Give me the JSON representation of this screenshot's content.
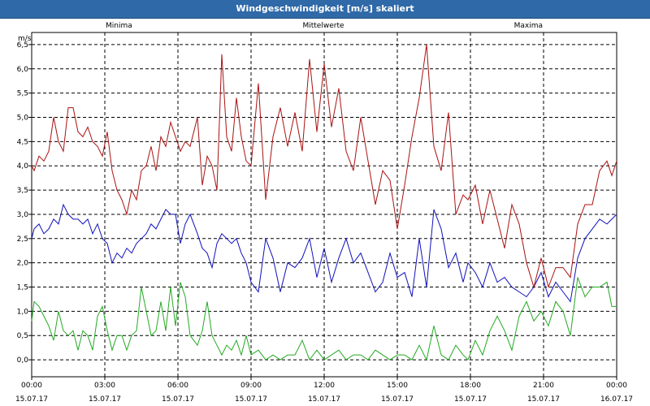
{
  "window": {
    "title": "Windgeschwindigkeit [m/s] skaliert"
  },
  "chart_data": {
    "type": "line",
    "title": "Windgeschwindigkeit [m/s] skaliert",
    "ylabel": "m/s",
    "ylim": [
      -0.35,
      6.75
    ],
    "xlim_hours": [
      0,
      24
    ],
    "grid": true,
    "legend_placement": "top",
    "y_ticks": [
      "0,0",
      "0,5",
      "1,0",
      "1,5",
      "2,0",
      "2,5",
      "3,0",
      "3,5",
      "4,0",
      "4,5",
      "5,0",
      "5,5",
      "6,0",
      "6,5"
    ],
    "x_ticks": [
      {
        "time": "00:00",
        "date": "15.07.17"
      },
      {
        "time": "03:00",
        "date": "15.07.17"
      },
      {
        "time": "06:00",
        "date": "15.07.17"
      },
      {
        "time": "09:00",
        "date": "15.07.17"
      },
      {
        "time": "12:00",
        "date": "15.07.17"
      },
      {
        "time": "15:00",
        "date": "15.07.17"
      },
      {
        "time": "18:00",
        "date": "15.07.17"
      },
      {
        "time": "21:00",
        "date": "15.07.17"
      },
      {
        "time": "00:00",
        "date": "16.07.17"
      }
    ],
    "series": [
      {
        "name": "Minima",
        "color": "#22aa22",
        "x": [
          0,
          0.1,
          0.3,
          0.5,
          0.7,
          0.9,
          1.1,
          1.3,
          1.5,
          1.7,
          1.9,
          2.1,
          2.3,
          2.5,
          2.7,
          2.9,
          3.1,
          3.3,
          3.5,
          3.7,
          3.9,
          4.1,
          4.3,
          4.5,
          4.7,
          4.9,
          5.1,
          5.3,
          5.5,
          5.7,
          5.9,
          6.1,
          6.3,
          6.5,
          6.8,
          7.0,
          7.2,
          7.4,
          7.6,
          7.8,
          8.0,
          8.2,
          8.4,
          8.6,
          8.8,
          9.0,
          9.3,
          9.6,
          9.9,
          10.2,
          10.5,
          10.8,
          11.1,
          11.4,
          11.7,
          12.0,
          12.3,
          12.6,
          12.9,
          13.2,
          13.5,
          13.8,
          14.1,
          14.4,
          14.7,
          15.0,
          15.3,
          15.6,
          15.9,
          16.2,
          16.5,
          16.8,
          17.1,
          17.4,
          17.7,
          17.9,
          18.2,
          18.5,
          18.8,
          19.1,
          19.4,
          19.7,
          20.0,
          20.3,
          20.6,
          20.9,
          21.2,
          21.5,
          21.8,
          22.1,
          22.4,
          22.7,
          23.0,
          23.3,
          23.6,
          23.8,
          24.0
        ],
        "y": [
          0.8,
          1.2,
          1.1,
          0.9,
          0.7,
          0.4,
          1.0,
          0.6,
          0.5,
          0.6,
          0.2,
          0.6,
          0.5,
          0.2,
          0.9,
          1.1,
          0.6,
          0.2,
          0.5,
          0.5,
          0.2,
          0.5,
          0.6,
          1.5,
          1.0,
          0.5,
          0.6,
          1.2,
          0.6,
          1.5,
          0.7,
          1.6,
          1.3,
          0.5,
          0.3,
          0.6,
          1.2,
          0.5,
          0.3,
          0.1,
          0.3,
          0.2,
          0.4,
          0.1,
          0.5,
          0.1,
          0.2,
          0.0,
          0.1,
          0.0,
          0.1,
          0.1,
          0.4,
          0.0,
          0.2,
          0.0,
          0.1,
          0.2,
          0.0,
          0.1,
          0.1,
          0.0,
          0.2,
          0.1,
          0.0,
          0.1,
          0.1,
          0.0,
          0.3,
          0.0,
          0.7,
          0.1,
          0.0,
          0.3,
          0.1,
          0.0,
          0.4,
          0.1,
          0.6,
          0.9,
          0.6,
          0.2,
          0.9,
          1.2,
          0.8,
          1.0,
          0.7,
          1.2,
          1.0,
          0.5,
          1.7,
          1.3,
          1.5,
          1.5,
          1.6,
          1.1,
          1.1
        ]
      },
      {
        "name": "Mittelwerte",
        "color": "#1010bb",
        "x": [
          0,
          0.1,
          0.3,
          0.5,
          0.7,
          0.9,
          1.1,
          1.3,
          1.5,
          1.7,
          1.9,
          2.1,
          2.3,
          2.5,
          2.7,
          2.9,
          3.1,
          3.3,
          3.5,
          3.7,
          3.9,
          4.1,
          4.3,
          4.5,
          4.7,
          4.9,
          5.1,
          5.3,
          5.5,
          5.7,
          5.9,
          6.1,
          6.3,
          6.5,
          6.8,
          7.0,
          7.2,
          7.4,
          7.6,
          7.8,
          8.0,
          8.2,
          8.4,
          8.6,
          8.8,
          9.0,
          9.3,
          9.6,
          9.9,
          10.2,
          10.5,
          10.8,
          11.1,
          11.4,
          11.7,
          12.0,
          12.3,
          12.6,
          12.9,
          13.2,
          13.5,
          13.8,
          14.1,
          14.4,
          14.7,
          15.0,
          15.3,
          15.6,
          15.9,
          16.2,
          16.5,
          16.8,
          17.1,
          17.4,
          17.7,
          17.9,
          18.2,
          18.5,
          18.8,
          19.1,
          19.4,
          19.7,
          20.0,
          20.3,
          20.6,
          20.9,
          21.2,
          21.5,
          21.8,
          22.1,
          22.4,
          22.7,
          23.0,
          23.3,
          23.6,
          23.8,
          24.0
        ],
        "y": [
          2.5,
          2.7,
          2.8,
          2.6,
          2.7,
          2.9,
          2.8,
          3.2,
          3.0,
          2.9,
          2.9,
          2.8,
          2.9,
          2.6,
          2.8,
          2.5,
          2.4,
          2.0,
          2.2,
          2.1,
          2.3,
          2.2,
          2.4,
          2.5,
          2.6,
          2.8,
          2.7,
          2.9,
          3.1,
          3.0,
          3.0,
          2.4,
          2.8,
          3.0,
          2.6,
          2.3,
          2.2,
          1.9,
          2.4,
          2.6,
          2.5,
          2.4,
          2.5,
          2.2,
          2.0,
          1.6,
          1.4,
          2.5,
          2.1,
          1.4,
          2.0,
          1.9,
          2.1,
          2.5,
          1.7,
          2.3,
          1.6,
          2.1,
          2.5,
          2.0,
          2.2,
          1.8,
          1.4,
          1.6,
          2.2,
          1.7,
          1.8,
          1.3,
          2.5,
          1.5,
          3.1,
          2.7,
          1.9,
          2.2,
          1.6,
          2.0,
          1.8,
          1.5,
          2.0,
          1.6,
          1.7,
          1.5,
          1.4,
          1.3,
          1.5,
          1.8,
          1.3,
          1.6,
          1.4,
          1.2,
          2.1,
          2.5,
          2.7,
          2.9,
          2.8,
          2.9,
          3.0
        ]
      },
      {
        "name": "Maxima",
        "color": "#aa1111",
        "x": [
          0,
          0.1,
          0.3,
          0.5,
          0.7,
          0.9,
          1.1,
          1.3,
          1.5,
          1.7,
          1.9,
          2.1,
          2.3,
          2.5,
          2.7,
          2.9,
          3.1,
          3.3,
          3.5,
          3.7,
          3.9,
          4.1,
          4.3,
          4.5,
          4.7,
          4.9,
          5.1,
          5.3,
          5.5,
          5.7,
          5.9,
          6.1,
          6.3,
          6.5,
          6.8,
          7.0,
          7.2,
          7.4,
          7.6,
          7.8,
          8.0,
          8.2,
          8.4,
          8.6,
          8.8,
          9.0,
          9.3,
          9.6,
          9.9,
          10.2,
          10.5,
          10.8,
          11.1,
          11.4,
          11.7,
          12.0,
          12.3,
          12.6,
          12.9,
          13.2,
          13.5,
          13.8,
          14.1,
          14.4,
          14.7,
          15.0,
          15.3,
          15.6,
          15.9,
          16.2,
          16.5,
          16.8,
          17.1,
          17.4,
          17.7,
          17.9,
          18.2,
          18.5,
          18.8,
          19.1,
          19.4,
          19.7,
          20.0,
          20.3,
          20.6,
          20.9,
          21.2,
          21.5,
          21.8,
          22.1,
          22.4,
          22.7,
          23.0,
          23.3,
          23.6,
          23.8,
          24.0
        ],
        "y": [
          4.0,
          3.9,
          4.2,
          4.1,
          4.3,
          5.0,
          4.5,
          4.3,
          5.2,
          5.2,
          4.7,
          4.6,
          4.8,
          4.5,
          4.4,
          4.2,
          4.7,
          3.9,
          3.5,
          3.3,
          3.0,
          3.5,
          3.3,
          3.9,
          4.0,
          4.4,
          3.9,
          4.6,
          4.4,
          4.9,
          4.6,
          4.3,
          4.5,
          4.4,
          5.0,
          3.6,
          4.2,
          4.0,
          3.5,
          6.3,
          4.6,
          4.3,
          5.4,
          4.6,
          4.1,
          4.0,
          5.7,
          3.3,
          4.6,
          5.2,
          4.4,
          5.1,
          4.3,
          6.2,
          4.7,
          6.1,
          4.8,
          5.6,
          4.3,
          3.9,
          5.0,
          4.1,
          3.2,
          3.9,
          3.7,
          2.7,
          3.6,
          4.6,
          5.4,
          6.5,
          4.4,
          3.9,
          5.1,
          3.0,
          3.4,
          3.3,
          3.6,
          2.8,
          3.5,
          2.9,
          2.3,
          3.2,
          2.8,
          2.0,
          1.5,
          2.1,
          1.5,
          1.9,
          1.9,
          1.7,
          2.8,
          3.2,
          3.2,
          3.9,
          4.1,
          3.8,
          4.1
        ]
      }
    ]
  }
}
